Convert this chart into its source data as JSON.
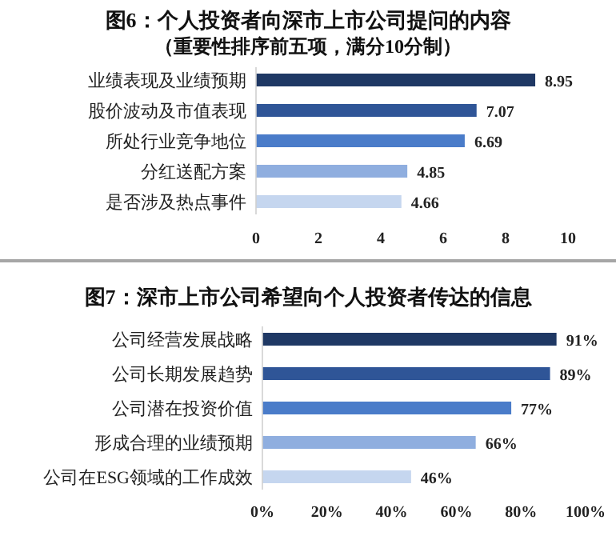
{
  "chart_data": [
    {
      "type": "bar",
      "orientation": "horizontal",
      "title": "图6：个人投资者向深市上市公司提问的内容",
      "subtitle": "（重要性排序前五项，满分10分制）",
      "categories": [
        "业绩表现及业绩预期",
        "股价波动及市值表现",
        "所处行业竞争地位",
        "分红送配方案",
        "是否涉及热点事件"
      ],
      "values": [
        8.95,
        7.07,
        6.69,
        4.85,
        4.66
      ],
      "colors": [
        "#1f3864",
        "#2f5597",
        "#4a7cc9",
        "#8faedf",
        "#c5d6ef"
      ],
      "xlim": [
        0,
        10
      ],
      "xticks": [
        0,
        2,
        4,
        6,
        8,
        10
      ],
      "data_labels": true,
      "grid": false
    },
    {
      "type": "bar",
      "orientation": "horizontal",
      "title": "图7：深市上市公司希望向个人投资者传达的信息",
      "categories": [
        "公司经营发展战略",
        "公司长期发展趋势",
        "公司潜在投资价值",
        "形成合理的业绩预期",
        "公司在ESG领域的工作成效"
      ],
      "values": [
        91,
        89,
        77,
        66,
        46
      ],
      "value_labels": [
        "91%",
        "89%",
        "77%",
        "66%",
        "46%"
      ],
      "colors": [
        "#1f3864",
        "#2f5597",
        "#4a7cc9",
        "#8faedf",
        "#c5d6ef"
      ],
      "xlim": [
        0,
        100
      ],
      "xticks": [
        {
          "value": 0,
          "label": "0%"
        },
        {
          "value": 20,
          "label": "20%"
        },
        {
          "value": 40,
          "label": "40%"
        },
        {
          "value": 60,
          "label": "60%"
        },
        {
          "value": 80,
          "label": "80%"
        },
        {
          "value": 100,
          "label": "100%"
        }
      ],
      "data_labels": false,
      "grid": false
    }
  ]
}
